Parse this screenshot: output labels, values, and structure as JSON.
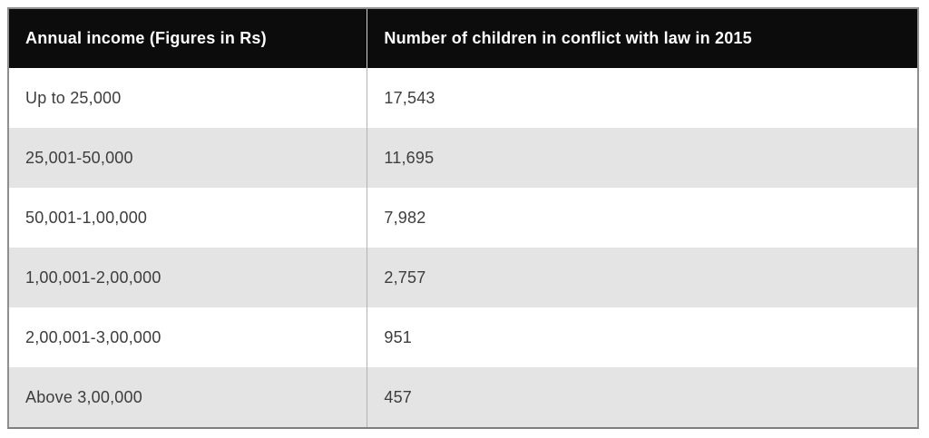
{
  "table": {
    "columns": [
      {
        "label": "Annual income (Figures in Rs)"
      },
      {
        "label": "Number of children in conflict with law in 2015"
      }
    ],
    "rows": [
      {
        "income": "Up to 25,000",
        "count": "17,543"
      },
      {
        "income": "25,001-50,000",
        "count": "11,695"
      },
      {
        "income": "50,001-1,00,000",
        "count": "7,982"
      },
      {
        "income": "1,00,001-2,00,000",
        "count": "2,757"
      },
      {
        "income": "2,00,001-3,00,000",
        "count": "951"
      },
      {
        "income": "Above 3,00,000",
        "count": "457"
      }
    ]
  },
  "chart_data": {
    "type": "table",
    "title": "",
    "columns": [
      "Annual income (Figures in Rs)",
      "Number of children in conflict with law in 2015"
    ],
    "categories": [
      "Up to 25,000",
      "25,001-50,000",
      "50,001-1,00,000",
      "1,00,001-2,00,000",
      "2,00,001-3,00,000",
      "Above 3,00,000"
    ],
    "values": [
      17543,
      11695,
      7982,
      2757,
      951,
      457
    ],
    "layout_hints": {
      "header_style": "black-bar",
      "row_striping": "even-rows-gray"
    }
  },
  "colors": {
    "header_bg": "#0c0c0c",
    "header_text": "#ffffff",
    "row_alt_bg": "#e4e4e4",
    "row_plain_bg": "#ffffff",
    "body_text": "#3d3d3d",
    "outer_border": "#8f8f8f",
    "column_divider": "#b3b3b3",
    "page_bg": "#ffffff"
  }
}
